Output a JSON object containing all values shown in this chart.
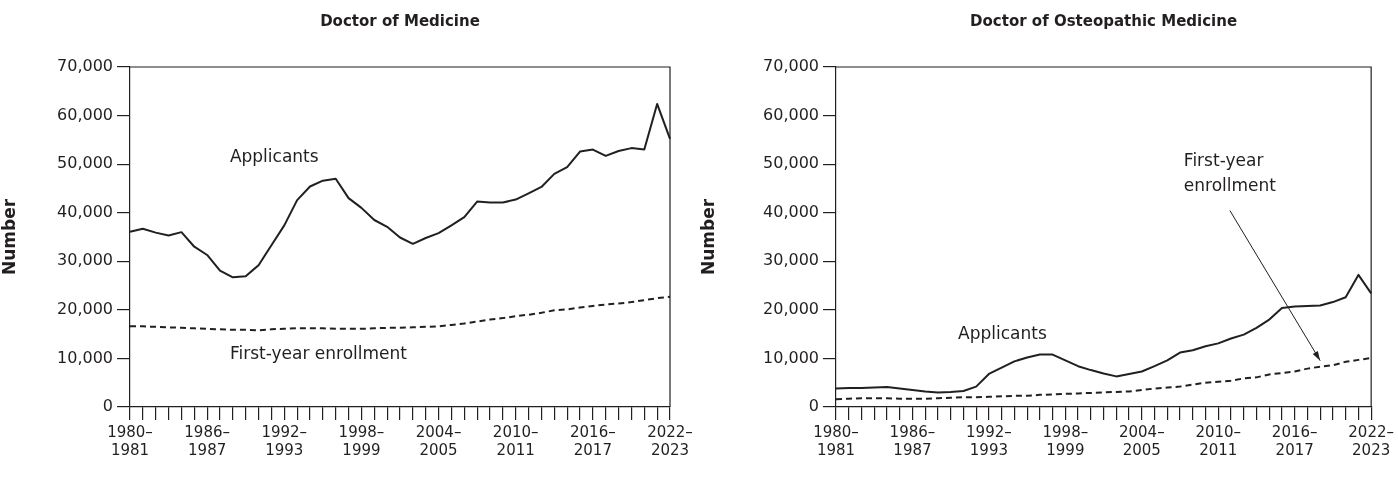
{
  "chart_data": [
    {
      "type": "line",
      "title": "Doctor of Medicine",
      "ylabel": "Number",
      "legend": false,
      "grid": false,
      "marker": "none",
      "categories": [
        "1980–1981",
        null,
        null,
        null,
        null,
        null,
        "1986–1987",
        null,
        null,
        null,
        null,
        null,
        "1992–1993",
        null,
        null,
        null,
        null,
        null,
        "1998–1999",
        null,
        null,
        null,
        null,
        null,
        "2004–2005",
        null,
        null,
        null,
        null,
        null,
        "2010–2011",
        null,
        null,
        null,
        null,
        null,
        "2016–2017",
        null,
        null,
        null,
        null,
        null,
        "2022–2023"
      ],
      "ylim": [
        0,
        70000
      ],
      "yticks": [
        0,
        {
          "value": 10000,
          "label": "10,000"
        },
        {
          "value": 20000,
          "label": "20,000"
        },
        {
          "value": 30000,
          "label": "30,000"
        },
        {
          "value": 40000,
          "label": "40,000"
        },
        {
          "value": 50000,
          "label": "50,000"
        },
        {
          "value": 60000,
          "label": "60,000"
        },
        {
          "value": 70000,
          "label": "70,000"
        }
      ],
      "series": [
        {
          "name": "Applicants",
          "color": "#231f20",
          "line_style": "solid",
          "values": [
            36100,
            36700,
            35900,
            35300,
            36000,
            33000,
            31300,
            28100,
            26700,
            26900,
            29200,
            33300,
            37400,
            42600,
            45400,
            46600,
            47000,
            43000,
            41000,
            38500,
            37100,
            34900,
            33600,
            34800,
            35800,
            37400,
            39100,
            42300,
            42100,
            42100,
            42700,
            44000,
            45300,
            48000,
            49400,
            52600,
            53000,
            51700,
            52700,
            53300,
            53000,
            62400,
            55200
          ]
        },
        {
          "name": "First-year enrollment",
          "color": "#231f20",
          "line_style": "dashed",
          "values": [
            16600,
            16600,
            16500,
            16400,
            16300,
            16200,
            16100,
            16000,
            15900,
            15900,
            15800,
            16000,
            16100,
            16200,
            16200,
            16200,
            16100,
            16100,
            16100,
            16200,
            16300,
            16300,
            16400,
            16500,
            16600,
            16900,
            17200,
            17600,
            18000,
            18300,
            18700,
            19000,
            19400,
            19900,
            20100,
            20500,
            20800,
            21100,
            21300,
            21600,
            22000,
            22400,
            22700
          ]
        }
      ]
    },
    {
      "type": "line",
      "title": "Doctor of Osteopathic Medicine",
      "ylabel": "Number",
      "legend": false,
      "grid": false,
      "marker": "none",
      "categories": [
        "1980–1981",
        null,
        null,
        null,
        null,
        null,
        "1986–1987",
        null,
        null,
        null,
        null,
        null,
        "1992–1993",
        null,
        null,
        null,
        null,
        null,
        "1998–1999",
        null,
        null,
        null,
        null,
        null,
        "2004–2005",
        null,
        null,
        null,
        null,
        null,
        "2010–2011",
        null,
        null,
        null,
        null,
        null,
        "2016–2017",
        null,
        null,
        null,
        null,
        null,
        "2022–2023"
      ],
      "ylim": [
        0,
        70000
      ],
      "yticks": [
        0,
        {
          "value": 10000,
          "label": "10,000"
        },
        {
          "value": 20000,
          "label": "20,000"
        },
        {
          "value": 30000,
          "label": "30,000"
        },
        {
          "value": 40000,
          "label": "40,000"
        },
        {
          "value": 50000,
          "label": "50,000"
        },
        {
          "value": 60000,
          "label": "60,000"
        },
        {
          "value": 70000,
          "label": "70,000"
        }
      ],
      "series": [
        {
          "name": "Applicants",
          "color": "#231f20",
          "line_style": "solid",
          "values": [
            3800,
            3900,
            3900,
            4000,
            4100,
            3800,
            3500,
            3200,
            3000,
            3100,
            3300,
            4200,
            6800,
            8100,
            9400,
            10200,
            10800,
            10800,
            9600,
            8400,
            7600,
            6900,
            6300,
            6800,
            7300,
            8400,
            9600,
            11200,
            11700,
            12500,
            13100,
            14100,
            14900,
            16300,
            18000,
            20400,
            20700,
            20800,
            20900,
            21600,
            22600,
            27200,
            23400
          ]
        },
        {
          "name": "First-year enrollment",
          "color": "#231f20",
          "line_style": "dashed",
          "values": [
            1600,
            1700,
            1800,
            1800,
            1800,
            1700,
            1700,
            1700,
            1800,
            1900,
            2000,
            2000,
            2100,
            2200,
            2300,
            2300,
            2500,
            2600,
            2700,
            2800,
            2900,
            3000,
            3100,
            3200,
            3500,
            3800,
            4000,
            4200,
            4600,
            5000,
            5200,
            5400,
            5900,
            6100,
            6700,
            7000,
            7300,
            7900,
            8300,
            8600,
            9300,
            9700,
            10100
          ]
        }
      ]
    }
  ]
}
